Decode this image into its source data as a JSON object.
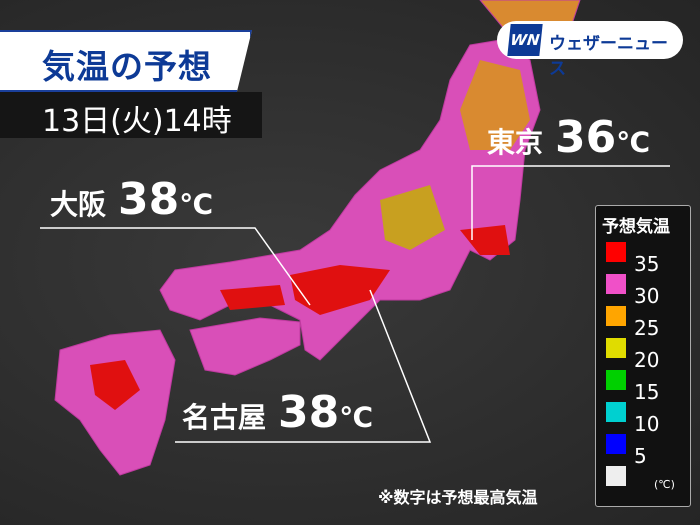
{
  "title": "気温の予想",
  "datetime": "13日(火)14時",
  "logo": {
    "text": "ウェザーニュース",
    "mark": "WN"
  },
  "cities": [
    {
      "name": "東京",
      "temp": "36",
      "unit": "℃"
    },
    {
      "name": "大阪",
      "temp": "38",
      "unit": "℃"
    },
    {
      "name": "名古屋",
      "temp": "38",
      "unit": "℃"
    }
  ],
  "legend": {
    "title": "予想気温",
    "unit": "(℃)",
    "items": [
      {
        "label": "35",
        "color": "#ff0000"
      },
      {
        "label": "30",
        "color": "#f050c8"
      },
      {
        "label": "25",
        "color": "#ffa500"
      },
      {
        "label": "20",
        "color": "#e0dc00"
      },
      {
        "label": "15",
        "color": "#00d000"
      },
      {
        "label": "10",
        "color": "#00d0d0"
      },
      {
        "label": "5",
        "color": "#0000ff"
      },
      {
        "label": "",
        "color": "#eeeeee"
      }
    ]
  },
  "note": "※数字は予想最高気温"
}
